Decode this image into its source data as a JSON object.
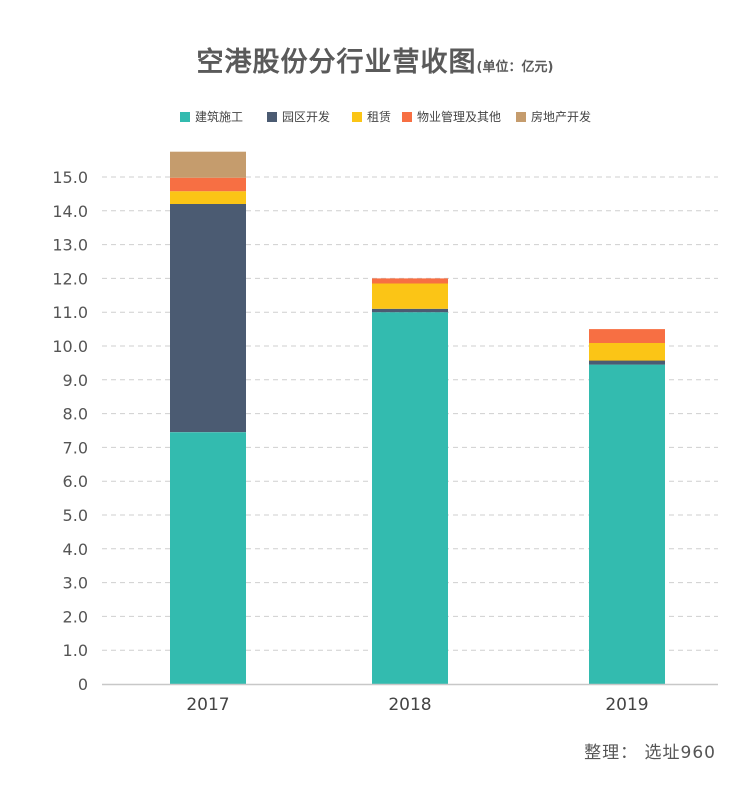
{
  "chart_data": {
    "type": "bar",
    "stacked": true,
    "title": "空港股份分行业营收图",
    "subtitle": "(单位：亿元)",
    "categories": [
      "2017",
      "2018",
      "2019"
    ],
    "series": [
      {
        "name": "建筑施工",
        "color": "#33bbaf",
        "values": [
          7.45,
          11.0,
          9.45
        ]
      },
      {
        "name": "园区开发",
        "color": "#4b5b72",
        "values": [
          6.75,
          0.1,
          0.12
        ]
      },
      {
        "name": "租赁",
        "color": "#fbc516",
        "values": [
          0.38,
          0.75,
          0.52
        ]
      },
      {
        "name": "物业管理及其他",
        "color": "#f76f43",
        "values": [
          0.4,
          0.15,
          0.41
        ]
      },
      {
        "name": "房地产开发",
        "color": "#c59c6d",
        "values": [
          0.77,
          0,
          0
        ]
      }
    ],
    "y_ticks": [
      "0",
      "1.0",
      "2.0",
      "3.0",
      "4.0",
      "5.0",
      "6.0",
      "7.0",
      "8.0",
      "9.0",
      "10.0",
      "11.0",
      "12.0",
      "13.0",
      "14.0",
      "15.0"
    ],
    "ylim": [
      0,
      15
    ],
    "grid": true,
    "legend_position": "top-center",
    "xlabel": "",
    "ylabel": ""
  },
  "credit": "整理：  选址960"
}
